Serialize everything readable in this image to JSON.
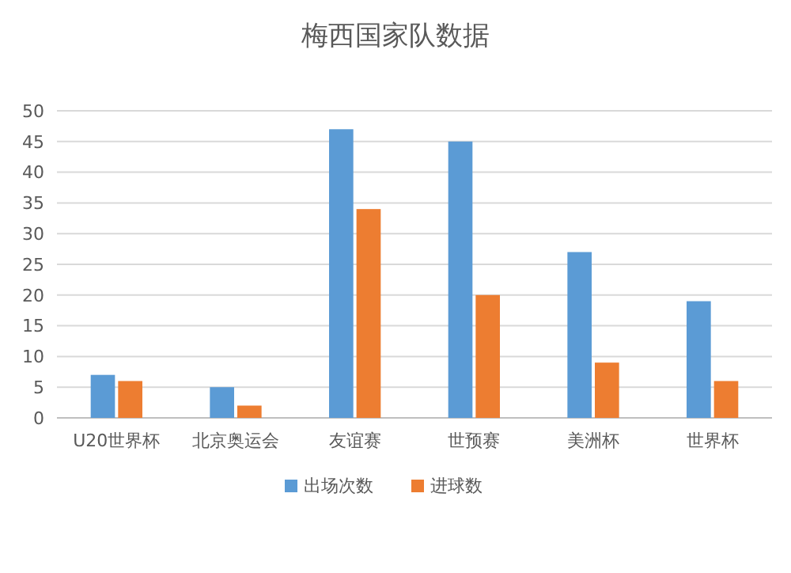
{
  "chart_data": {
    "type": "bar",
    "title": "梅西国家队数据",
    "categories": [
      "U20世界杯",
      "北京奥运会",
      "友谊赛",
      "世预赛",
      "美洲杯",
      "世界杯"
    ],
    "series": [
      {
        "name": "出场次数",
        "color": "#5b9bd5",
        "values": [
          7,
          5,
          47,
          45,
          27,
          19
        ]
      },
      {
        "name": "进球数",
        "color": "#ed7d31",
        "values": [
          6,
          2,
          34,
          20,
          9,
          6
        ]
      }
    ],
    "ylim": [
      0,
      50
    ],
    "yticks": [
      0,
      5,
      10,
      15,
      20,
      25,
      30,
      35,
      40,
      45,
      50
    ],
    "grid": "y",
    "legend": "bottom"
  }
}
